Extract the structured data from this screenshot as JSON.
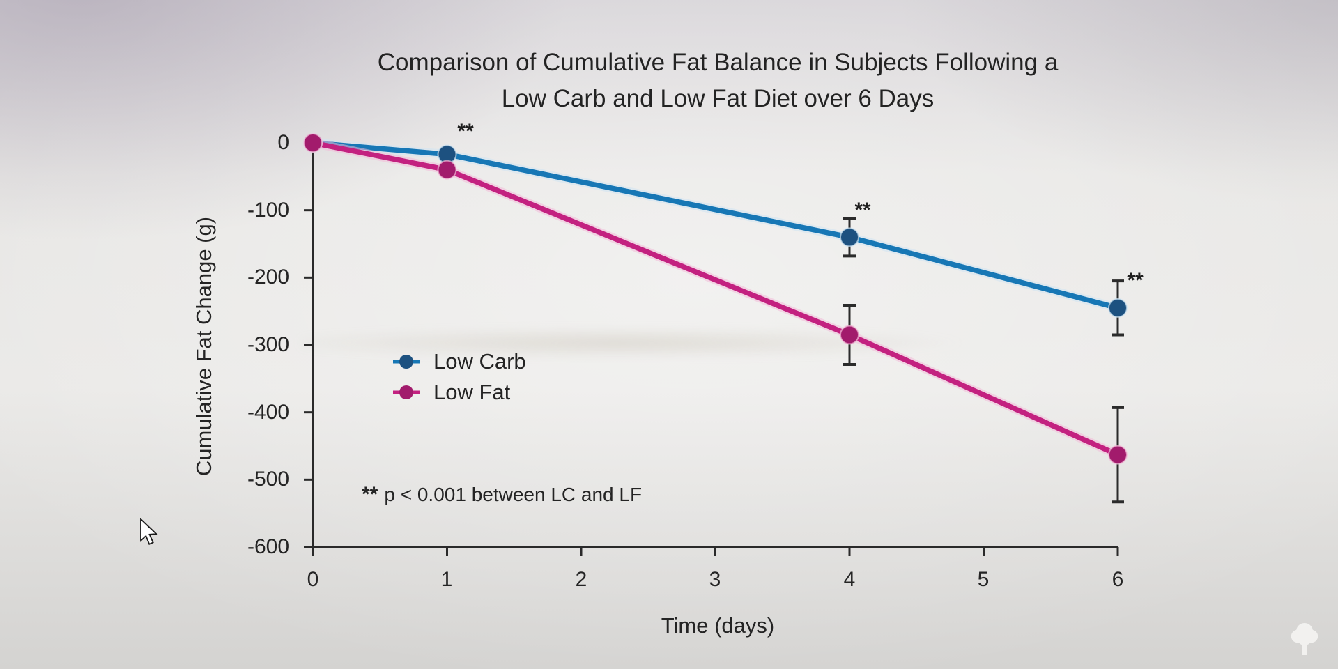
{
  "chart_data": {
    "type": "line",
    "title_line1": "Comparison of Cumulative Fat Balance in Subjects Following a",
    "title_line2": "Low Carb and Low Fat Diet over 6 Days",
    "xlabel": "Time (days)",
    "ylabel": "Cumulative Fat Change (g)",
    "xlim": [
      0,
      6
    ],
    "ylim": [
      -600,
      0
    ],
    "grid": false,
    "legend_position": "inside-middle-left",
    "axis_color": "#2a2a2a",
    "error_bar_color": "#2b2b2b",
    "text_color": "#242424",
    "background_color": "#e9e8e6",
    "x": [
      0,
      1,
      4,
      6
    ],
    "xticks": [
      0,
      1,
      2,
      3,
      4,
      5,
      6
    ],
    "yticks": [
      0,
      -100,
      -200,
      -300,
      -400,
      -500,
      -600
    ],
    "xtick_labels": [
      "0",
      "1",
      "2",
      "3",
      "4",
      "5",
      "6"
    ],
    "ytick_labels": [
      "0",
      "-100",
      "-200",
      "-300",
      "-400",
      "-500",
      "-600"
    ],
    "series": [
      {
        "name": "Low Carb",
        "line_color": "#1777b5",
        "marker_color": "#1d5180",
        "halo_color": "#cfe4f2",
        "values": [
          0,
          -17,
          -140,
          -245
        ],
        "errors": [
          null,
          null,
          28,
          40
        ]
      },
      {
        "name": "Low Fat",
        "line_color": "#c32180",
        "marker_color": "#a21b6c",
        "halo_color": "#f3bcd8",
        "values": [
          0,
          -40,
          -285,
          -463
        ],
        "errors": [
          null,
          null,
          44,
          70
        ]
      }
    ],
    "significance": {
      "symbol": "**",
      "note": "p < 0.001 between LC and LF",
      "marked_days": [
        1,
        4,
        6
      ]
    }
  },
  "icons": {
    "watermark": "tree-icon",
    "pointer": "arrow-cursor-icon"
  }
}
